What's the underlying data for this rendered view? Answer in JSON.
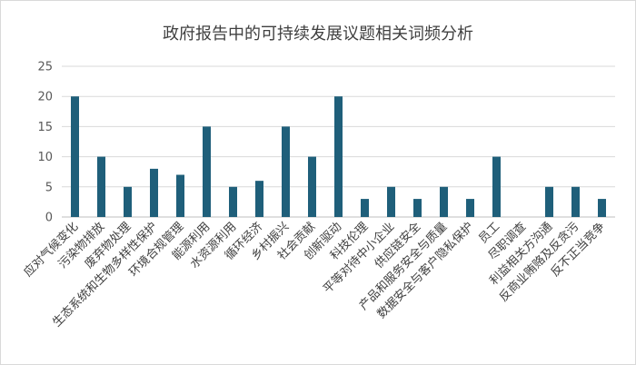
{
  "chart_data": {
    "type": "bar",
    "title": "政府报告中的可持续发展议题相关词频分析",
    "xlabel": "",
    "ylabel": "",
    "ylim": [
      0,
      25
    ],
    "yticks": [
      0,
      5,
      10,
      15,
      20,
      25
    ],
    "grid": true,
    "legend": "none",
    "bar_color": "#1f5f7a",
    "categories": [
      "应对气候变化",
      "污染物排放",
      "废弃物处理",
      "生态系统和生物多样性保护",
      "环境合规管理",
      "能源利用",
      "水资源利用",
      "循环经济",
      "乡村振兴",
      "社会贡献",
      "创新驱动",
      "科技伦理",
      "平等对待中小企业",
      "供应链安全",
      "产品和服务安全与质量",
      "数据安全与客户隐私保护",
      "员工",
      "尽职调查",
      "利益相关方沟通",
      "反商业贿赂及反贪污",
      "反不正当竞争"
    ],
    "values": [
      20,
      10,
      5,
      8,
      7,
      15,
      5,
      6,
      15,
      10,
      20,
      3,
      5,
      3,
      5,
      3,
      10,
      0,
      5,
      5,
      3
    ]
  }
}
